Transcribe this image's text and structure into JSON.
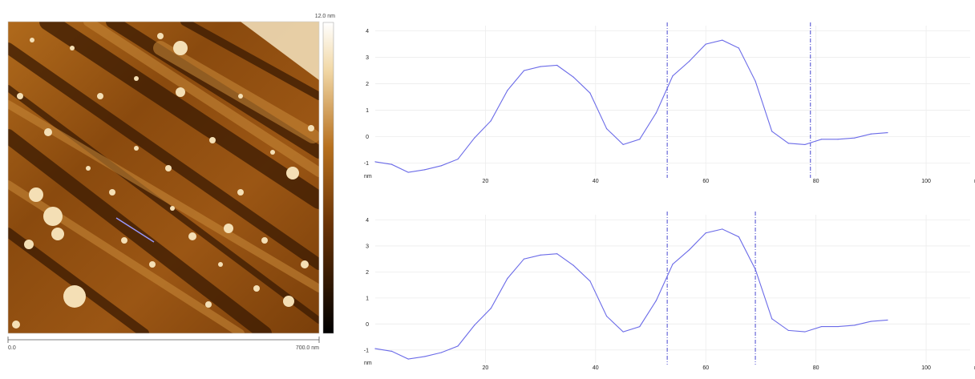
{
  "afm_image": {
    "scale_max_label": "12.0 nm",
    "x_start_label": "0.0",
    "x_end_label": "700.0 nm",
    "colors": {
      "dark": "#2a1400",
      "mid": "#a65a12",
      "bright": "#f7e7c8",
      "profile_line": "#9999ff"
    }
  },
  "chart_data": [
    {
      "type": "line",
      "y_unit_label": "nm",
      "x_unit_label": "nm",
      "xlim": [
        0,
        108
      ],
      "ylim": [
        -1.5,
        4.2
      ],
      "x_ticks": [
        20,
        40,
        60,
        80,
        100
      ],
      "y_ticks": [
        -1,
        0,
        1,
        2,
        3,
        4
      ],
      "grid": true,
      "series": [
        {
          "x": [
            0,
            3,
            6,
            9,
            12,
            15,
            18,
            21,
            24,
            27,
            30,
            33,
            36,
            39,
            42,
            45,
            48,
            51,
            54,
            57,
            60,
            63,
            66,
            69,
            72,
            75,
            78,
            81,
            84,
            87,
            90,
            93,
            96,
            99,
            102
          ],
          "y": [
            -0.95,
            -1.05,
            -1.35,
            -1.25,
            -1.1,
            -0.85,
            -0.05,
            0.6,
            1.75,
            2.5,
            2.65,
            2.7,
            2.25,
            1.65,
            0.3,
            -0.3,
            -0.1,
            0.9,
            2.3,
            2.85,
            3.5,
            3.65,
            3.35,
            2.1,
            0.2,
            -0.25,
            -0.3,
            -0.1,
            -0.1,
            -0.05,
            0.1,
            0.15,
            null,
            null,
            null
          ],
          "color": "#6b6be8"
        }
      ],
      "markers_x": [
        53,
        79
      ]
    },
    {
      "type": "line",
      "y_unit_label": "nm",
      "x_unit_label": "nm",
      "xlim": [
        0,
        108
      ],
      "ylim": [
        -1.5,
        4.2
      ],
      "x_ticks": [
        20,
        40,
        60,
        80,
        100
      ],
      "y_ticks": [
        -1,
        0,
        1,
        2,
        3,
        4
      ],
      "grid": true,
      "series": [
        {
          "x": [
            0,
            3,
            6,
            9,
            12,
            15,
            18,
            21,
            24,
            27,
            30,
            33,
            36,
            39,
            42,
            45,
            48,
            51,
            54,
            57,
            60,
            63,
            66,
            69,
            72,
            75,
            78,
            81,
            84,
            87,
            90,
            93,
            96,
            99,
            102
          ],
          "y": [
            -0.95,
            -1.05,
            -1.35,
            -1.25,
            -1.1,
            -0.85,
            -0.05,
            0.6,
            1.75,
            2.5,
            2.65,
            2.7,
            2.25,
            1.65,
            0.3,
            -0.3,
            -0.1,
            0.9,
            2.3,
            2.85,
            3.5,
            3.65,
            3.35,
            2.1,
            0.2,
            -0.25,
            -0.3,
            -0.1,
            -0.1,
            -0.05,
            0.1,
            0.15,
            null,
            null,
            null
          ],
          "color": "#6b6be8"
        }
      ],
      "markers_x": [
        53,
        69
      ]
    }
  ]
}
